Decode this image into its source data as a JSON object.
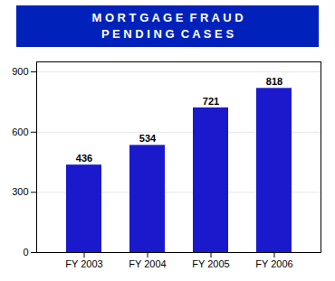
{
  "chart_data": {
    "type": "bar",
    "title": "M O R T G A G E  F R A U D",
    "subtitle": "P E N D I N G  C A S E S",
    "categories": [
      "FY 2003",
      "FY 2004",
      "FY 2005",
      "FY 2006"
    ],
    "values": [
      436,
      534,
      721,
      818
    ],
    "color": "#1a1acc",
    "ylim": [
      0,
      950
    ],
    "yticks": [
      0,
      300,
      600,
      900
    ],
    "grid": true,
    "data_labels": true
  }
}
